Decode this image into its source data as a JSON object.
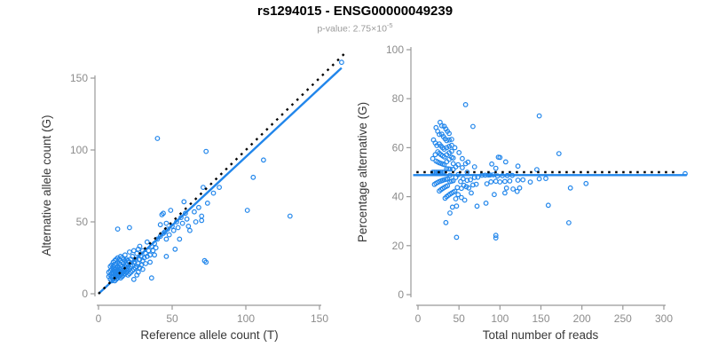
{
  "title": "rs1294015 - ENSG00000049239",
  "subtitle": {
    "prefix": "p-value: 2.75×10",
    "exponent": "-5"
  },
  "colors": {
    "accent_blue": "#2186EB",
    "dotted_black": "#000000",
    "axis_line": "#999999",
    "tick_label": "#8C8C8C",
    "axis_title": "#383838",
    "subtitle_gray": "#9A9A9A"
  },
  "chart_data": {
    "type": "scatter",
    "description": "Allele-specific expression: per-sample reference vs alternative allele read counts (left) and percentage alternative vs total reads (right). Dotted line = expectation (y=x / 50%), solid blue = fit.",
    "samples_ref_alt": [
      [
        7,
        12
      ],
      [
        7,
        15
      ],
      [
        8,
        10
      ],
      [
        8,
        13
      ],
      [
        8,
        16
      ],
      [
        8,
        19
      ],
      [
        9,
        9
      ],
      [
        9,
        12
      ],
      [
        9,
        14
      ],
      [
        9,
        17
      ],
      [
        9,
        20
      ],
      [
        10,
        10
      ],
      [
        10,
        12
      ],
      [
        10,
        14
      ],
      [
        10,
        16
      ],
      [
        10,
        19
      ],
      [
        10,
        22
      ],
      [
        11,
        9
      ],
      [
        11,
        11
      ],
      [
        11,
        13
      ],
      [
        11,
        15
      ],
      [
        11,
        17
      ],
      [
        11,
        20
      ],
      [
        11,
        23
      ],
      [
        12,
        10
      ],
      [
        12,
        12
      ],
      [
        12,
        14
      ],
      [
        12,
        16
      ],
      [
        12,
        18
      ],
      [
        12,
        21
      ],
      [
        12,
        24
      ],
      [
        13,
        11
      ],
      [
        13,
        13
      ],
      [
        13,
        15
      ],
      [
        13,
        17
      ],
      [
        13,
        19
      ],
      [
        13,
        22
      ],
      [
        13,
        25
      ],
      [
        14,
        12
      ],
      [
        14,
        14
      ],
      [
        14,
        16
      ],
      [
        14,
        18
      ],
      [
        14,
        21
      ],
      [
        14,
        24
      ],
      [
        15,
        11
      ],
      [
        15,
        13
      ],
      [
        15,
        15
      ],
      [
        15,
        17
      ],
      [
        15,
        20
      ],
      [
        15,
        23
      ],
      [
        15,
        26
      ],
      [
        16,
        12
      ],
      [
        16,
        14
      ],
      [
        16,
        16
      ],
      [
        16,
        19
      ],
      [
        16,
        22
      ],
      [
        16,
        25
      ],
      [
        17,
        13
      ],
      [
        17,
        15
      ],
      [
        17,
        18
      ],
      [
        17,
        21
      ],
      [
        17,
        24
      ],
      [
        18,
        14
      ],
      [
        18,
        16
      ],
      [
        18,
        19
      ],
      [
        18,
        23
      ],
      [
        18,
        27
      ],
      [
        19,
        15
      ],
      [
        19,
        17
      ],
      [
        19,
        20
      ],
      [
        19,
        24
      ],
      [
        20,
        13
      ],
      [
        20,
        16
      ],
      [
        20,
        19
      ],
      [
        20,
        23
      ],
      [
        21,
        14
      ],
      [
        21,
        18
      ],
      [
        21,
        22
      ],
      [
        21,
        29
      ],
      [
        22,
        15
      ],
      [
        22,
        19
      ],
      [
        22,
        24
      ],
      [
        23,
        16
      ],
      [
        23,
        20
      ],
      [
        23,
        26
      ],
      [
        24,
        10
      ],
      [
        24,
        17
      ],
      [
        24,
        22
      ],
      [
        24,
        30
      ],
      [
        25,
        18
      ],
      [
        25,
        24
      ],
      [
        26,
        13
      ],
      [
        26,
        19
      ],
      [
        26,
        28
      ],
      [
        27,
        15
      ],
      [
        27,
        21
      ],
      [
        27,
        31
      ],
      [
        28,
        18
      ],
      [
        28,
        24
      ],
      [
        28,
        33
      ],
      [
        29,
        20
      ],
      [
        29,
        26
      ],
      [
        30,
        17
      ],
      [
        30,
        23
      ],
      [
        30,
        30
      ],
      [
        31,
        25
      ],
      [
        32,
        21
      ],
      [
        32,
        28
      ],
      [
        33,
        26
      ],
      [
        33,
        36
      ],
      [
        34,
        30
      ],
      [
        35,
        22
      ],
      [
        35,
        27
      ],
      [
        36,
        11
      ],
      [
        36,
        33
      ],
      [
        37,
        30
      ],
      [
        38,
        27
      ],
      [
        38,
        35
      ],
      [
        39,
        32
      ],
      [
        40,
        38
      ],
      [
        42,
        40
      ],
      [
        42,
        48
      ],
      [
        43,
        55
      ],
      [
        44,
        42
      ],
      [
        44,
        56
      ],
      [
        45,
        43
      ],
      [
        46,
        26
      ],
      [
        46,
        38
      ],
      [
        46,
        49
      ],
      [
        47,
        45
      ],
      [
        48,
        41
      ],
      [
        49,
        58
      ],
      [
        50,
        47
      ],
      [
        51,
        44
      ],
      [
        52,
        31
      ],
      [
        53,
        50
      ],
      [
        54,
        46
      ],
      [
        55,
        38
      ],
      [
        56,
        53
      ],
      [
        57,
        49
      ],
      [
        58,
        64
      ],
      [
        59,
        56
      ],
      [
        60,
        52
      ],
      [
        61,
        47
      ],
      [
        62,
        44
      ],
      [
        65,
        57
      ],
      [
        66,
        50
      ],
      [
        68,
        60
      ],
      [
        70,
        51
      ],
      [
        70,
        54
      ],
      [
        72,
        23
      ],
      [
        73,
        22
      ],
      [
        74,
        63
      ],
      [
        78,
        70
      ],
      [
        82,
        74
      ],
      [
        13,
        45
      ],
      [
        21,
        46
      ],
      [
        40,
        108
      ],
      [
        71,
        74
      ],
      [
        73,
        99
      ],
      [
        101,
        58
      ],
      [
        105,
        81
      ],
      [
        112,
        93
      ],
      [
        130,
        54
      ],
      [
        165,
        161
      ]
    ],
    "plots": [
      {
        "id": "left",
        "xlabel": "Reference allele count (T)",
        "ylabel": "Alternative allele count (G)",
        "x_from": "ref",
        "y_from": "alt",
        "x_ticks": [
          0,
          50,
          100,
          150
        ],
        "y_ticks": [
          0,
          50,
          100,
          150
        ],
        "xlim": [
          0,
          168
        ],
        "ylim": [
          0,
          168
        ],
        "lines": [
          {
            "name": "fit-line",
            "style": "solid",
            "type": "slope",
            "slope": 0.952,
            "intercept": 0,
            "x_range": [
              0,
              165
            ]
          },
          {
            "name": "identity-line",
            "style": "dotted",
            "type": "slope",
            "slope": 1,
            "intercept": 0,
            "x_range": [
              0,
              168
            ]
          }
        ]
      },
      {
        "id": "right",
        "xlabel": "Total number of reads",
        "ylabel": "Percentage alternative (G)",
        "x_from": "total",
        "y_from": "pct",
        "x_ticks": [
          0,
          50,
          100,
          150,
          200,
          250,
          300
        ],
        "y_ticks": [
          0,
          20,
          40,
          60,
          80,
          100
        ],
        "xlim": [
          0,
          330
        ],
        "ylim": [
          0,
          100
        ],
        "lines": [
          {
            "name": "fit-line",
            "style": "solid",
            "type": "hline",
            "y": 48.8,
            "x_range": [
              -6,
              328
            ]
          },
          {
            "name": "expected-line",
            "style": "dotted",
            "type": "hline",
            "y": 50,
            "x_range": [
              -2,
              316
            ]
          }
        ]
      }
    ]
  }
}
